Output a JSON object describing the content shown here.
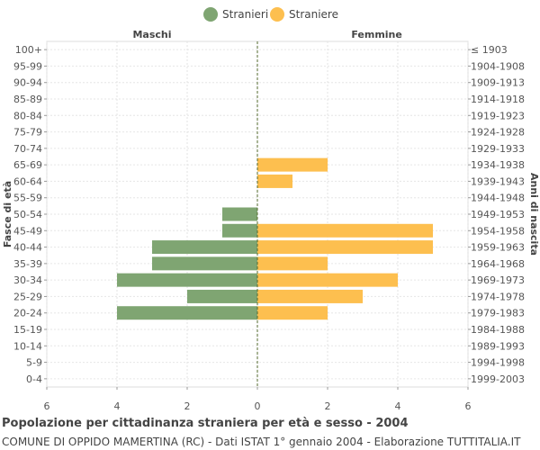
{
  "chart_data": {
    "type": "bar",
    "title": "Popolazione per cittadinanza straniera per età e sesso - 2004",
    "subtitle": "COMUNE DI OPPIDO MAMERTINA (RC) - Dati ISTAT 1° gennaio 2004 - Elaborazione TUTTITALIA.IT",
    "left_header": "Maschi",
    "right_header": "Femmine",
    "ylabel_left": "Fasce di età",
    "ylabel_right": "Anni di nascita",
    "xlim": [
      -6,
      6
    ],
    "x_ticks": [
      -6,
      -4,
      -2,
      0,
      2,
      4,
      6
    ],
    "x_tick_labels": [
      "6",
      "4",
      "2",
      "0",
      "2",
      "4",
      "6"
    ],
    "grid": true,
    "legend_position": "top-center",
    "categories": [
      "100+",
      "95-99",
      "90-94",
      "85-89",
      "80-84",
      "75-79",
      "70-74",
      "65-69",
      "60-64",
      "55-59",
      "50-54",
      "45-49",
      "40-44",
      "35-39",
      "30-34",
      "25-29",
      "20-24",
      "15-19",
      "10-14",
      "5-9",
      "0-4"
    ],
    "birth_years": [
      "≤ 1903",
      "1904-1908",
      "1909-1913",
      "1914-1918",
      "1919-1923",
      "1924-1928",
      "1929-1933",
      "1934-1938",
      "1939-1943",
      "1944-1948",
      "1949-1953",
      "1954-1958",
      "1959-1963",
      "1964-1968",
      "1969-1973",
      "1974-1978",
      "1979-1983",
      "1984-1988",
      "1989-1993",
      "1994-1998",
      "1999-2003"
    ],
    "series": [
      {
        "name": "Stranieri",
        "color": "#7fa572",
        "side": "left",
        "values": [
          0,
          0,
          0,
          0,
          0,
          0,
          0,
          0,
          0,
          0,
          1,
          1,
          3,
          3,
          4,
          2,
          4,
          0,
          0,
          0,
          0
        ]
      },
      {
        "name": "Straniere",
        "color": "#fdbf4f",
        "side": "right",
        "values": [
          0,
          0,
          0,
          0,
          0,
          0,
          0,
          2,
          1,
          0,
          0,
          5,
          5,
          2,
          4,
          3,
          2,
          0,
          0,
          0,
          0
        ]
      }
    ]
  }
}
